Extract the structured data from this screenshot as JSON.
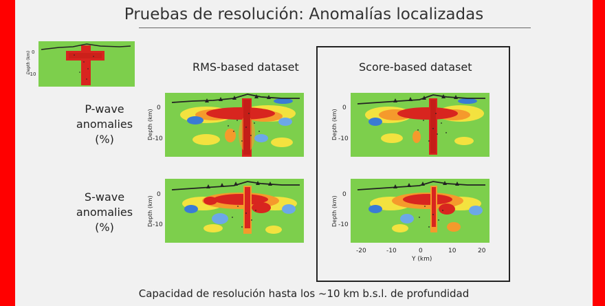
{
  "title": "Pruebas de resolución: Anomalías localizadas",
  "columns": {
    "rms": "RMS-based dataset",
    "score": "Score-based dataset"
  },
  "rows": {
    "p_wave": [
      "P-wave",
      "anomalies",
      "(%)"
    ],
    "s_wave": [
      "S-wave",
      "anomalies",
      "(%)"
    ]
  },
  "axes": {
    "depth_label": "Depth (km)",
    "depth_label_small": "Depth (km)",
    "depth_ticks": [
      "0",
      "-10"
    ],
    "y_label": "Y (km)",
    "y_ticks": [
      "-20",
      "-10",
      "0",
      "10",
      "20"
    ]
  },
  "footer": "Capacidad de resolución hasta los ~10 km b.s.l. de profundidad",
  "colors": {
    "background_green": "#7dcf4c",
    "anomaly_red": "#d8251f",
    "anomaly_orange": "#f59a2c",
    "anomaly_yellow": "#f3e23f",
    "anomaly_blue": "#3a7bd5",
    "border": "#ff0000"
  }
}
